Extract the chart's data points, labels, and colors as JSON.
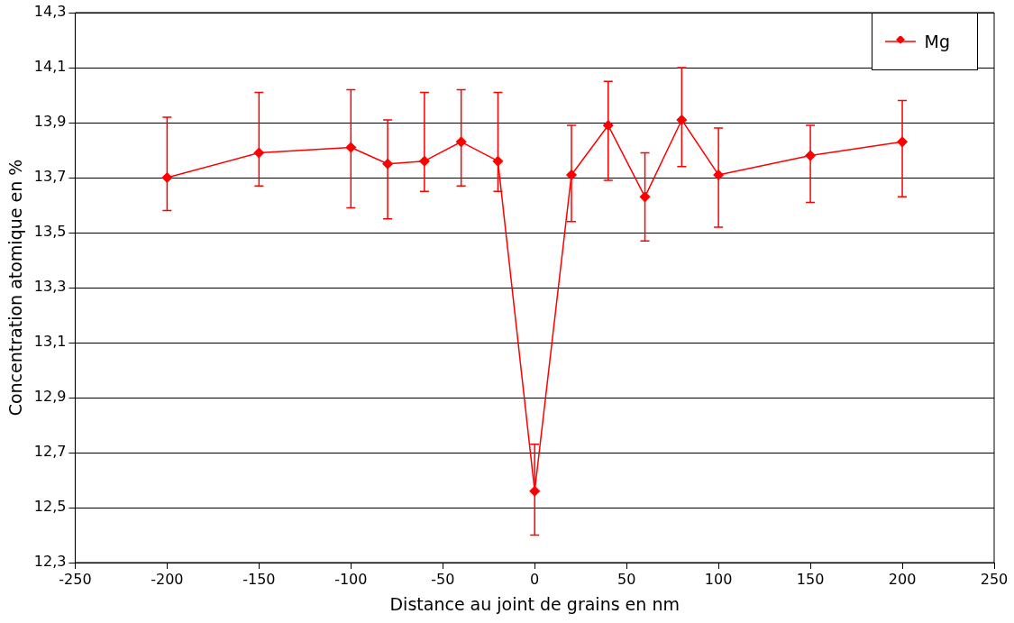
{
  "chart_data": {
    "type": "line",
    "xlabel": "Distance au joint de grains en nm",
    "ylabel": "Concentration atomique en %",
    "x": [
      -200,
      -150,
      -100,
      -80,
      -60,
      -40,
      -20,
      0,
      20,
      40,
      60,
      80,
      100,
      150,
      200
    ],
    "series": [
      {
        "name": "Mg",
        "color": "#ff0000",
        "values": [
          13.7,
          13.79,
          13.81,
          13.75,
          13.76,
          13.83,
          13.76,
          12.56,
          13.71,
          13.89,
          13.63,
          13.91,
          13.71,
          13.78,
          13.83
        ],
        "errors": [
          [
            13.58,
            13.92
          ],
          [
            13.67,
            14.01
          ],
          [
            13.59,
            14.02
          ],
          [
            13.55,
            13.91
          ],
          [
            13.65,
            14.01
          ],
          [
            13.67,
            14.02
          ],
          [
            13.65,
            14.01
          ],
          [
            12.4,
            12.73
          ],
          [
            13.54,
            13.89
          ],
          [
            13.69,
            14.05
          ],
          [
            13.47,
            13.79
          ],
          [
            13.74,
            14.1
          ],
          [
            13.52,
            13.88
          ],
          [
            13.61,
            13.89
          ],
          [
            13.63,
            13.98
          ]
        ]
      }
    ],
    "xlim": [
      -250,
      250
    ],
    "xticks": [
      -250,
      -200,
      -150,
      -100,
      -50,
      0,
      50,
      100,
      150,
      200,
      250
    ],
    "ylim": [
      12.3,
      14.3
    ],
    "yticks": [
      {
        "value": 12.3,
        "label": "12,3"
      },
      {
        "value": 12.5,
        "label": "12,5"
      },
      {
        "value": 12.7,
        "label": "12,7"
      },
      {
        "value": 12.9,
        "label": "12,9"
      },
      {
        "value": 13.1,
        "label": "13,1"
      },
      {
        "value": 13.3,
        "label": "13,3"
      },
      {
        "value": 13.5,
        "label": "13,5"
      },
      {
        "value": 13.7,
        "label": "13,7"
      },
      {
        "value": 13.9,
        "label": "13,9"
      },
      {
        "value": 14.1,
        "label": "14,1"
      },
      {
        "value": 14.3,
        "label": "14,3"
      }
    ],
    "grid": "y",
    "legend": "top right",
    "marker": "diamond",
    "line_style": "solid"
  }
}
